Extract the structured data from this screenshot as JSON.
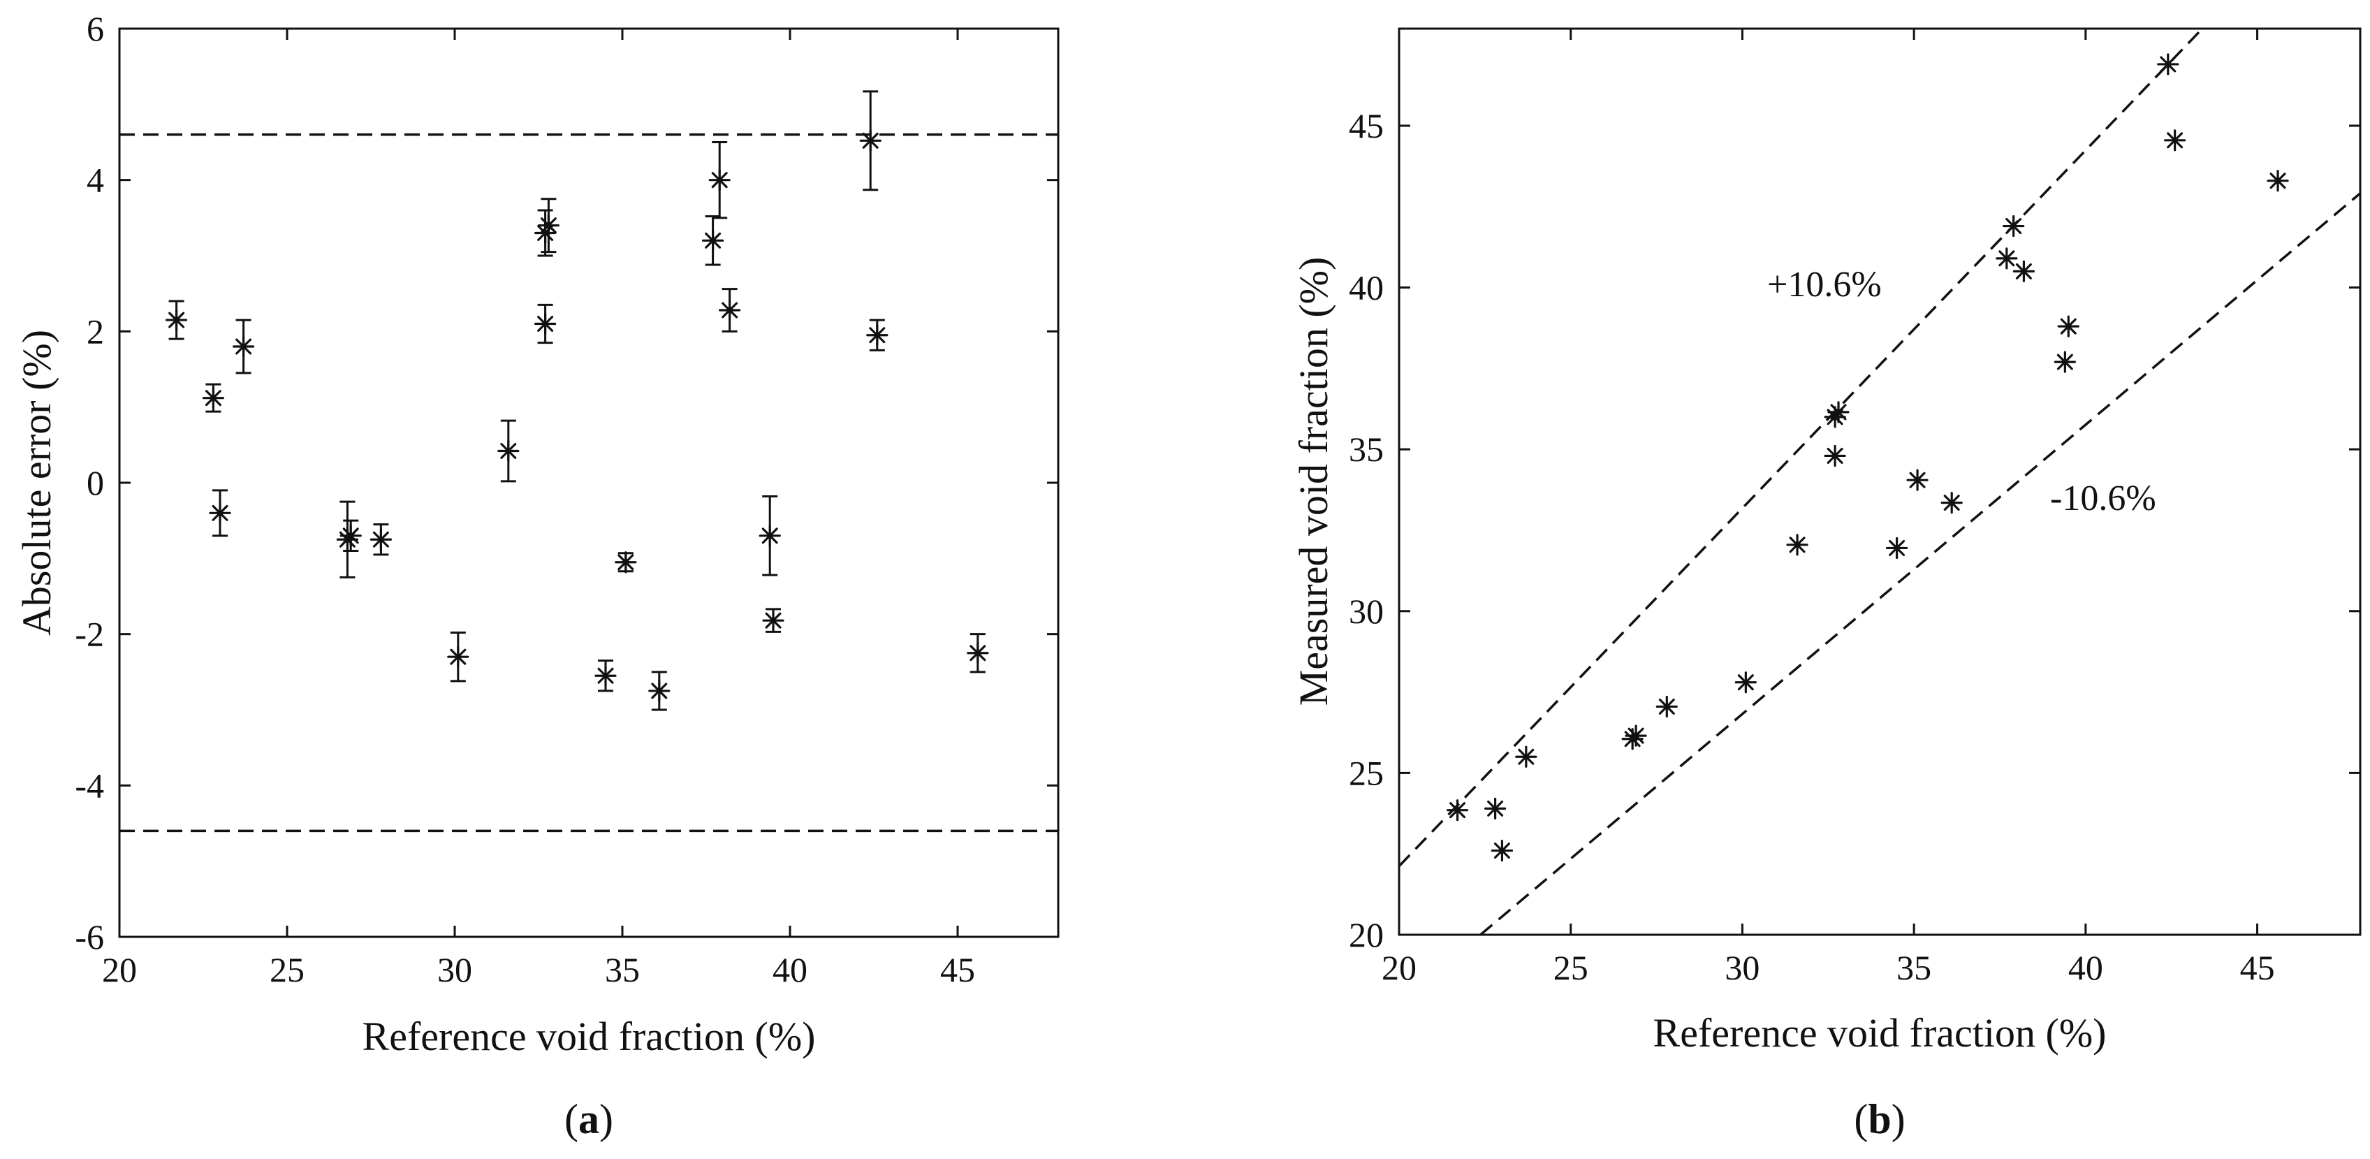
{
  "chart_data": [
    {
      "type": "scatter",
      "panel_label": {
        "open": "(",
        "letter": "a",
        "close": ")"
      },
      "xlabel": "Reference void fraction (%)",
      "ylabel": "Absolute error  (%)",
      "xlim": [
        20,
        48
      ],
      "ylim": [
        -6,
        6
      ],
      "xticks": [
        20,
        25,
        30,
        35,
        40,
        45
      ],
      "yticks": [
        -6,
        -4,
        -2,
        0,
        2,
        4,
        6
      ],
      "xtick_labels": [
        "20",
        "25",
        "30",
        "35",
        "40",
        "45"
      ],
      "ytick_labels": [
        "-6",
        "-4",
        "-2",
        "0",
        "2",
        "4",
        "6"
      ],
      "reference_lines": [
        4.6,
        -4.6
      ],
      "series": [
        {
          "name": "absolute error",
          "marker": "asterisk",
          "points": [
            {
              "x": 21.7,
              "y": 2.15,
              "err": 0.25
            },
            {
              "x": 22.8,
              "y": 1.12,
              "err": 0.18
            },
            {
              "x": 23.0,
              "y": -0.4,
              "err": 0.3
            },
            {
              "x": 23.7,
              "y": 1.8,
              "err": 0.35
            },
            {
              "x": 26.8,
              "y": -0.75,
              "err": 0.5
            },
            {
              "x": 26.9,
              "y": -0.7,
              "err": 0.2
            },
            {
              "x": 27.8,
              "y": -0.75,
              "err": 0.2
            },
            {
              "x": 30.1,
              "y": -2.3,
              "err": 0.32
            },
            {
              "x": 31.6,
              "y": 0.42,
              "err": 0.4
            },
            {
              "x": 32.7,
              "y": 3.3,
              "err": 0.3
            },
            {
              "x": 32.8,
              "y": 3.4,
              "err": 0.35
            },
            {
              "x": 32.7,
              "y": 2.1,
              "err": 0.25
            },
            {
              "x": 34.5,
              "y": -2.55,
              "err": 0.2
            },
            {
              "x": 35.1,
              "y": -1.05,
              "err": 0.12
            },
            {
              "x": 36.1,
              "y": -2.75,
              "err": 0.25
            },
            {
              "x": 37.7,
              "y": 3.2,
              "err": 0.32
            },
            {
              "x": 37.9,
              "y": 4.0,
              "err": 0.5
            },
            {
              "x": 38.2,
              "y": 2.28,
              "err": 0.28
            },
            {
              "x": 39.4,
              "y": -0.7,
              "err": 0.52
            },
            {
              "x": 39.5,
              "y": -1.82,
              "err": 0.15
            },
            {
              "x": 42.4,
              "y": 4.52,
              "err": 0.65
            },
            {
              "x": 42.6,
              "y": 1.95,
              "err": 0.2
            },
            {
              "x": 45.6,
              "y": -2.25,
              "err": 0.25
            }
          ]
        }
      ]
    },
    {
      "type": "scatter",
      "panel_label": {
        "open": "(",
        "letter": "b",
        "close": ")"
      },
      "xlabel": "Reference void fraction (%)",
      "ylabel": "Measured void fraction (%)",
      "xlim": [
        20,
        48
      ],
      "ylim": [
        20,
        48
      ],
      "xticks": [
        20,
        25,
        30,
        35,
        40,
        45
      ],
      "yticks": [
        20,
        25,
        30,
        35,
        40,
        45
      ],
      "xtick_labels": [
        "20",
        "25",
        "30",
        "35",
        "40",
        "45"
      ],
      "ytick_labels": [
        "20",
        "25",
        "30",
        "35",
        "40",
        "45"
      ],
      "reference_lines": [
        {
          "label": "+10.6%",
          "slope": 1.106
        },
        {
          "label": "-10.6%",
          "slope": 0.894
        }
      ],
      "series": [
        {
          "name": "measured void fraction",
          "marker": "asterisk",
          "points": [
            {
              "x": 21.7,
              "y": 23.85
            },
            {
              "x": 22.8,
              "y": 23.9
            },
            {
              "x": 23.0,
              "y": 22.6
            },
            {
              "x": 23.7,
              "y": 25.5
            },
            {
              "x": 26.8,
              "y": 26.05
            },
            {
              "x": 26.9,
              "y": 26.15
            },
            {
              "x": 27.8,
              "y": 27.05
            },
            {
              "x": 30.1,
              "y": 27.8
            },
            {
              "x": 31.6,
              "y": 32.05
            },
            {
              "x": 32.7,
              "y": 36.0
            },
            {
              "x": 32.8,
              "y": 36.15
            },
            {
              "x": 32.7,
              "y": 34.8
            },
            {
              "x": 34.5,
              "y": 31.95
            },
            {
              "x": 35.1,
              "y": 34.05
            },
            {
              "x": 36.1,
              "y": 33.35
            },
            {
              "x": 37.7,
              "y": 40.9
            },
            {
              "x": 37.9,
              "y": 41.9
            },
            {
              "x": 38.2,
              "y": 40.5
            },
            {
              "x": 39.4,
              "y": 37.7
            },
            {
              "x": 39.5,
              "y": 38.8
            },
            {
              "x": 42.4,
              "y": 46.9
            },
            {
              "x": 42.6,
              "y": 44.55
            },
            {
              "x": 45.6,
              "y": 43.3
            }
          ]
        }
      ]
    }
  ]
}
